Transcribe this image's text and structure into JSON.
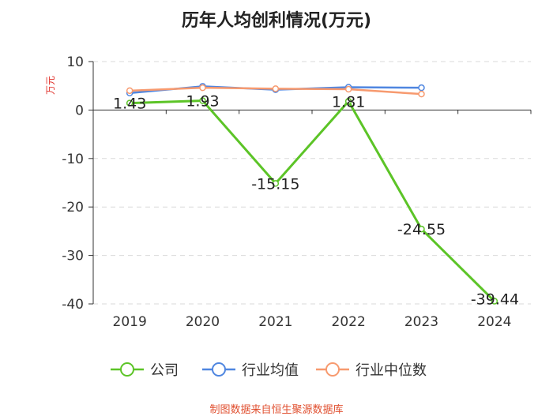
{
  "chart_data": {
    "type": "line",
    "title": "历年人均创利情况(万元)",
    "ylabel": "万元",
    "categories": [
      "2019",
      "2020",
      "2021",
      "2022",
      "2023",
      "2024"
    ],
    "ylim": [
      -40,
      10
    ],
    "yticks": [
      10,
      0,
      -10,
      -20,
      -30,
      -40
    ],
    "grid": true,
    "legend_position": "bottom",
    "series": [
      {
        "name": "公司",
        "color": "#5cc427",
        "values": [
          1.43,
          1.93,
          -15.15,
          1.81,
          -24.55,
          -39.44
        ],
        "labels": [
          "1.43",
          "1.93",
          "-15.15",
          "1.81",
          "-24.55",
          "-39.44"
        ]
      },
      {
        "name": "行业均值",
        "color": "#4f86e0",
        "values": [
          3.5,
          4.9,
          4.2,
          4.7,
          4.6,
          null
        ]
      },
      {
        "name": "行业中位数",
        "color": "#f79a6f",
        "values": [
          4.0,
          4.6,
          4.4,
          4.3,
          3.3,
          null
        ]
      }
    ]
  },
  "footer": {
    "source": "制图数据来自恒生聚源数据库"
  }
}
